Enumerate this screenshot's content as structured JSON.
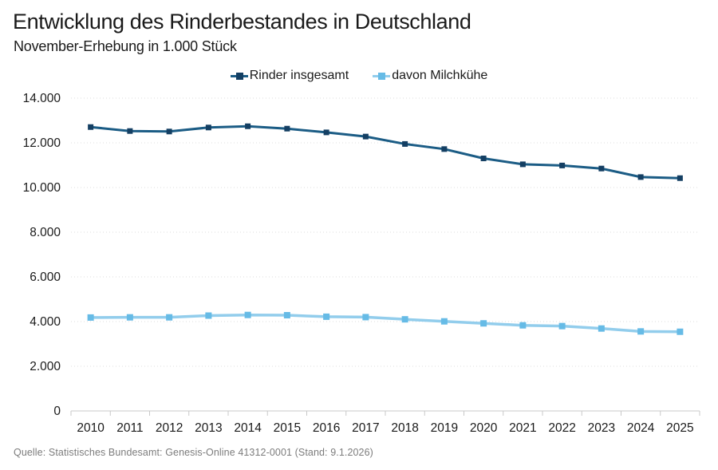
{
  "header": {
    "title": "Entwicklung des Rinderbestandes in Deutschland",
    "subtitle": "November-Erhebung in 1.000 Stück"
  },
  "source": "Quelle: Statistisches Bundesamt: Genesis-Online 41312-0001 (Stand: 9.1.2026)",
  "colors": {
    "background": "#ffffff",
    "text": "#1a1a1a",
    "gridline": "#dedede",
    "axis": "#c8c8c8",
    "source_text": "#7c7c7c",
    "series1_line": "#1b5c85",
    "series1_marker": "#143f63",
    "series2_line": "#92cdec",
    "series2_marker": "#66bbe6"
  },
  "chart_data": {
    "type": "line",
    "title": "Entwicklung des Rinderbestandes in Deutschland",
    "subtitle": "November-Erhebung in 1.000 Stück",
    "xlabel": "",
    "ylabel": "",
    "categories": [
      "2010",
      "2011",
      "2012",
      "2013",
      "2014",
      "2015",
      "2016",
      "2017",
      "2018",
      "2019",
      "2020",
      "2021",
      "2022",
      "2023",
      "2024",
      "2025"
    ],
    "series": [
      {
        "name": "Rinder insgesamt",
        "color": "#1b5c85",
        "marker_color": "#143f63",
        "marker": "square",
        "values": [
          12706,
          12528,
          12507,
          12686,
          12742,
          12635,
          12468,
          12281,
          11949,
          11721,
          11303,
          11039,
          10986,
          10850,
          10468,
          10420
        ]
      },
      {
        "name": "davon Milchkühe",
        "color": "#92cdec",
        "marker_color": "#66bbe6",
        "marker": "square",
        "values": [
          4182,
          4190,
          4190,
          4268,
          4296,
          4285,
          4218,
          4199,
          4101,
          4010,
          3920,
          3832,
          3798,
          3690,
          3560,
          3545
        ]
      }
    ],
    "ylim": [
      0,
      14000
    ],
    "y_ticks": [
      0,
      2000,
      4000,
      6000,
      8000,
      10000,
      12000,
      14000
    ],
    "y_tick_labels": [
      "0",
      "2.000",
      "4.000",
      "6.000",
      "8.000",
      "10.000",
      "12.000",
      "14.000"
    ],
    "grid": "horizontal-dotted",
    "legend_position": "top-center"
  }
}
